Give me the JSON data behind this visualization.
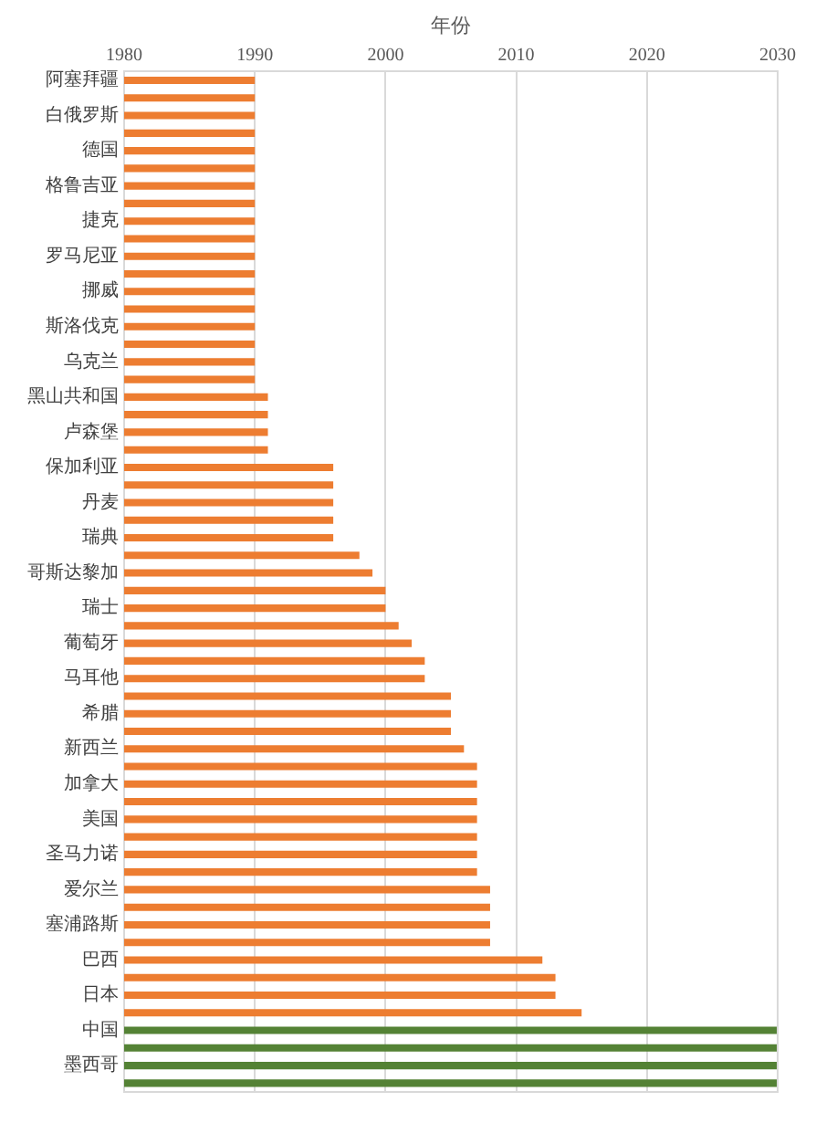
{
  "chart_data": {
    "type": "bar",
    "orientation": "horizontal",
    "xlabel": "年份",
    "categories": [
      "阿塞拜疆",
      null,
      "白俄罗斯",
      null,
      "德国",
      null,
      "格鲁吉亚",
      null,
      "捷克",
      null,
      "罗马尼亚",
      null,
      "挪威",
      null,
      "斯洛伐克",
      null,
      "乌克兰",
      null,
      "黑山共和国",
      null,
      "卢森堡",
      null,
      "保加利亚",
      null,
      "丹麦",
      null,
      "瑞典",
      null,
      "哥斯达黎加",
      null,
      "瑞士",
      null,
      "葡萄牙",
      null,
      "马耳他",
      null,
      "希腊",
      null,
      "新西兰",
      null,
      "加拿大",
      null,
      "美国",
      null,
      "圣马力诺",
      null,
      "爱尔兰",
      null,
      "塞浦路斯",
      null,
      "巴西",
      null,
      "日本",
      null,
      "中国",
      null,
      "墨西哥",
      null
    ],
    "values": [
      1990,
      1990,
      1990,
      1990,
      1990,
      1990,
      1990,
      1990,
      1990,
      1990,
      1990,
      1990,
      1990,
      1990,
      1990,
      1990,
      1990,
      1990,
      1991,
      1991,
      1991,
      1991,
      1996,
      1996,
      1996,
      1996,
      1996,
      1998,
      1999,
      2000,
      2000,
      2001,
      2002,
      2003,
      2003,
      2005,
      2005,
      2005,
      2006,
      2007,
      2007,
      2007,
      2007,
      2007,
      2007,
      2007,
      2008,
      2008,
      2008,
      2008,
      2012,
      2013,
      2013,
      2015,
      2030,
      2030,
      2030,
      2030
    ],
    "colors": [
      "#ed7d31",
      "#ed7d31",
      "#ed7d31",
      "#ed7d31",
      "#ed7d31",
      "#ed7d31",
      "#ed7d31",
      "#ed7d31",
      "#ed7d31",
      "#ed7d31",
      "#ed7d31",
      "#ed7d31",
      "#ed7d31",
      "#ed7d31",
      "#ed7d31",
      "#ed7d31",
      "#ed7d31",
      "#ed7d31",
      "#ed7d31",
      "#ed7d31",
      "#ed7d31",
      "#ed7d31",
      "#ed7d31",
      "#ed7d31",
      "#ed7d31",
      "#ed7d31",
      "#ed7d31",
      "#ed7d31",
      "#ed7d31",
      "#ed7d31",
      "#ed7d31",
      "#ed7d31",
      "#ed7d31",
      "#ed7d31",
      "#ed7d31",
      "#ed7d31",
      "#ed7d31",
      "#ed7d31",
      "#ed7d31",
      "#ed7d31",
      "#ed7d31",
      "#ed7d31",
      "#ed7d31",
      "#ed7d31",
      "#ed7d31",
      "#ed7d31",
      "#ed7d31",
      "#ed7d31",
      "#ed7d31",
      "#ed7d31",
      "#ed7d31",
      "#ed7d31",
      "#ed7d31",
      "#ed7d31",
      "#548235",
      "#548235",
      "#548235",
      "#548235"
    ],
    "xlim": [
      1980,
      2030
    ],
    "xticks": [
      1980,
      1990,
      2000,
      2010,
      2020,
      2030
    ],
    "grid": "x",
    "legend": false
  }
}
